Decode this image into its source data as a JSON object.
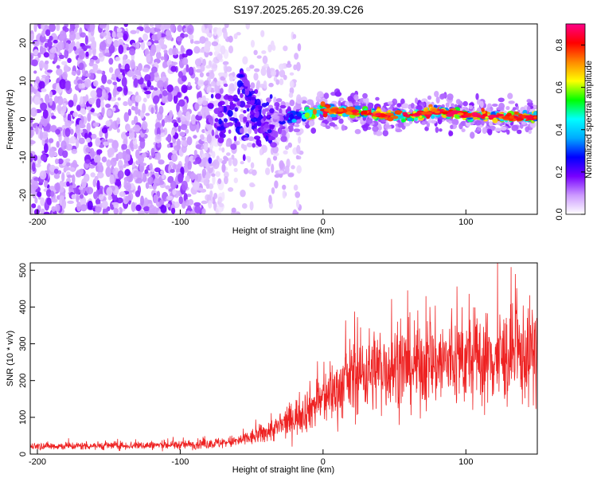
{
  "title": "S197.2025.265.20.39.C26",
  "chart_data": [
    {
      "type": "heatmap",
      "xlabel": "Height of straight line (km)",
      "ylabel": "Frequency (Hz)",
      "xlim": [
        -205,
        150
      ],
      "ylim": [
        -25,
        25
      ],
      "xticks": [
        -200,
        -100,
        0,
        100
      ],
      "yticks": [
        -20,
        -10,
        0,
        10,
        20
      ],
      "colorbar": {
        "label": "Normalized spectral amplitude",
        "range": [
          0.0,
          0.9
        ],
        "ticks": [
          0.0,
          0.2,
          0.4,
          0.6,
          0.8
        ],
        "colors": [
          "#ffffff",
          "#cc99ff",
          "#7700ff",
          "#0000ff",
          "#00aaff",
          "#00ffff",
          "#00ff00",
          "#ffff00",
          "#ff8800",
          "#ff0000",
          "#ff0088"
        ]
      },
      "features": {
        "noise_region_km": [
          -205,
          -75
        ],
        "transition_km": [
          -80,
          -30
        ],
        "diagonal_streak": {
          "x_start": -58,
          "f_start": 12,
          "x_end": -36,
          "f_end": -6
        },
        "band": [
          {
            "x": -35,
            "f": 0.0
          },
          {
            "x": -20,
            "f": 0.5
          },
          {
            "x": 0,
            "f": 2.5
          },
          {
            "x": 20,
            "f": 2.0
          },
          {
            "x": 40,
            "f": 1.0
          },
          {
            "x": 60,
            "f": 1.0
          },
          {
            "x": 80,
            "f": 2.0
          },
          {
            "x": 100,
            "f": 1.0
          },
          {
            "x": 120,
            "f": 0.5
          },
          {
            "x": 150,
            "f": 0.5
          }
        ]
      }
    },
    {
      "type": "line",
      "xlabel": "Height of straight line (km)",
      "ylabel": "SNR (10 * v/v)",
      "xlim": [
        -205,
        150
      ],
      "ylim": [
        0,
        520
      ],
      "xticks": [
        -200,
        -100,
        0,
        100
      ],
      "yticks": [
        0,
        100,
        200,
        300,
        400,
        500
      ],
      "color": "#ee2222",
      "series": [
        {
          "name": "SNR",
          "x": [
            -205,
            -180,
            -150,
            -120,
            -100,
            -80,
            -60,
            -50,
            -40,
            -30,
            -20,
            -10,
            0,
            10,
            20,
            30,
            40,
            60,
            80,
            100,
            120,
            140,
            150
          ],
          "y": [
            22,
            22,
            23,
            24,
            25,
            28,
            35,
            45,
            60,
            75,
            100,
            125,
            150,
            175,
            210,
            225,
            235,
            240,
            250,
            255,
            260,
            270,
            280
          ]
        }
      ]
    }
  ]
}
